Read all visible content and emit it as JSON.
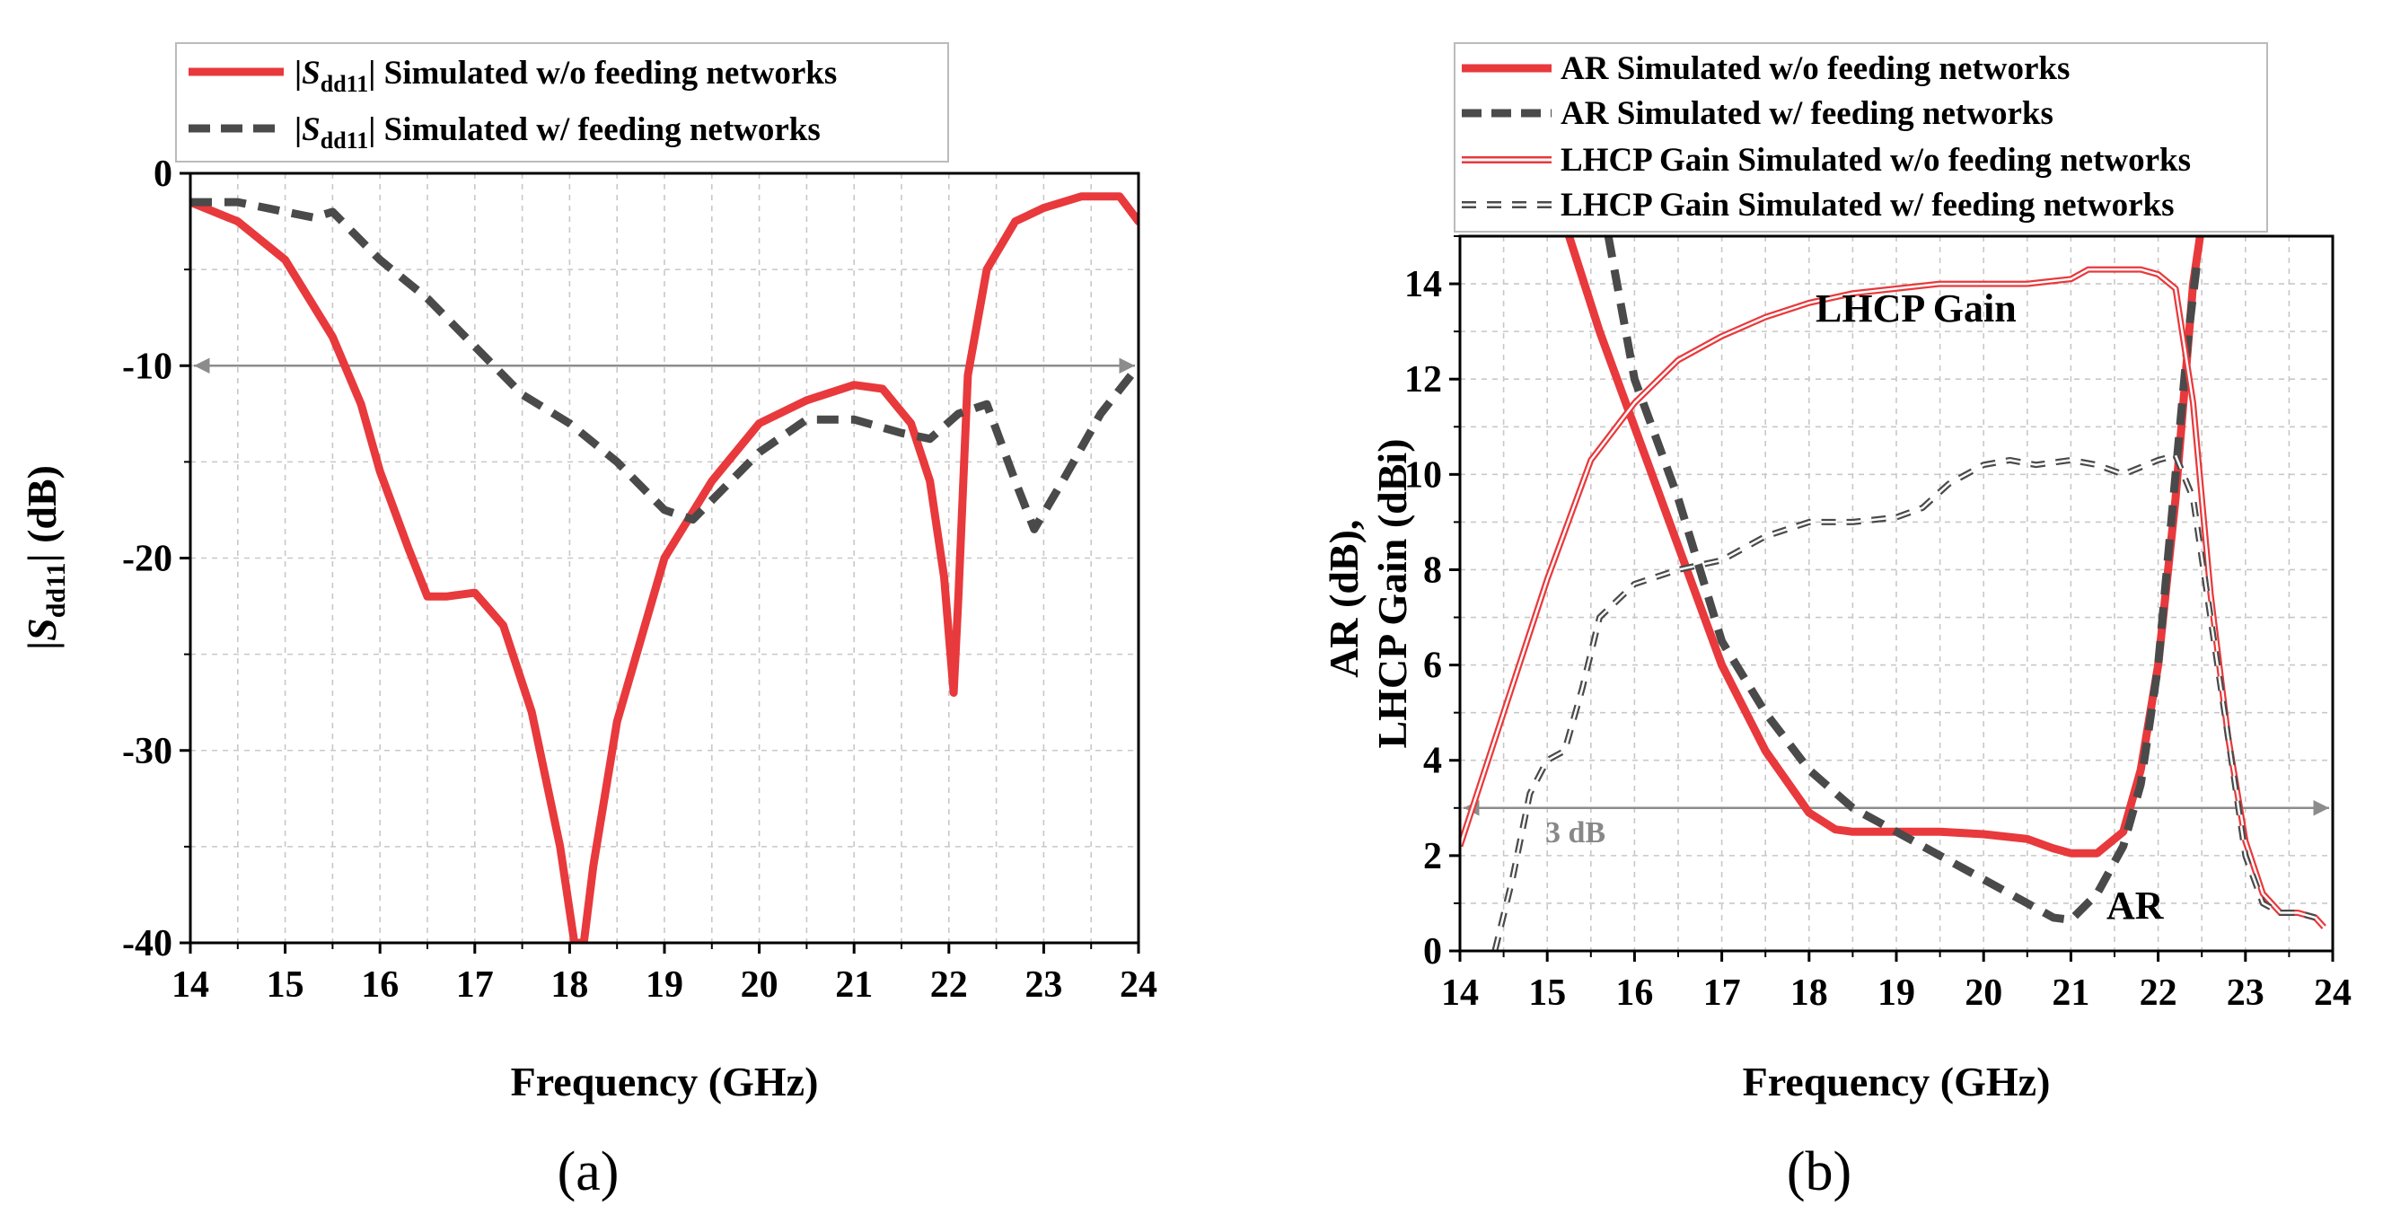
{
  "colors": {
    "red": "#e8393c",
    "dark": "#4a4a4a",
    "grid": "#c8c8c8",
    "reference": "#8c8c8c"
  },
  "chart_data": [
    {
      "id": "a",
      "type": "line",
      "panel_label": "(a)",
      "xlabel": "Frequency (GHz)",
      "ylabel": {
        "pre": "|",
        "sym": "S",
        "sub": "dd11",
        "post": "| (dB)"
      },
      "xlim": [
        14,
        24
      ],
      "ylim": [
        -40,
        0
      ],
      "x_ticks": [
        "14",
        "15",
        "16",
        "17",
        "18",
        "19",
        "20",
        "21",
        "22",
        "23",
        "24"
      ],
      "y_ticks": [
        "0",
        "-10",
        "-20",
        "-30",
        "-40"
      ],
      "grid": true,
      "legend_position": "top-left, above plot",
      "legend": [
        {
          "pre": "|",
          "sym": "S",
          "sub": "dd11",
          "post": "| Simulated w/o feeding networks",
          "style": "solid",
          "color": "#e8393c"
        },
        {
          "pre": "|",
          "sym": "S",
          "sub": "dd11",
          "post": "| Simulated w/ feeding networks",
          "style": "dash",
          "color": "#4a4a4a"
        }
      ],
      "reference_line": {
        "y": -10
      },
      "series": [
        {
          "name": "|Sdd11| Simulated w/o feeding networks",
          "style": "solid",
          "color": "#e8393c",
          "x": [
            14,
            14.5,
            15,
            15.5,
            15.8,
            16,
            16.3,
            16.5,
            16.7,
            17,
            17.3,
            17.6,
            17.9,
            18.05,
            18.15,
            18.25,
            18.5,
            19,
            19.5,
            20,
            20.5,
            21,
            21.3,
            21.6,
            21.8,
            21.95,
            22.05,
            22.1,
            22.2,
            22.4,
            22.7,
            23,
            23.4,
            23.8,
            24
          ],
          "y": [
            -1.5,
            -2.5,
            -4.5,
            -8.5,
            -12,
            -15.5,
            -19.5,
            -22,
            -22,
            -21.8,
            -23.5,
            -28,
            -35,
            -40,
            -40,
            -36,
            -28.5,
            -20,
            -16,
            -13,
            -11.8,
            -11,
            -11.2,
            -13,
            -16,
            -21,
            -27,
            -22,
            -10.5,
            -5,
            -2.5,
            -1.8,
            -1.2,
            -1.2,
            -2.5
          ]
        },
        {
          "name": "|Sdd11| Simulated w/ feeding networks",
          "style": "dash",
          "color": "#4a4a4a",
          "x": [
            14,
            14.5,
            15,
            15.3,
            15.5,
            16,
            16.5,
            17,
            17.5,
            18,
            18.5,
            19,
            19.3,
            19.6,
            20,
            20.5,
            21,
            21.5,
            21.8,
            22.1,
            22.4,
            22.7,
            22.9,
            23.2,
            23.6,
            24
          ],
          "y": [
            -1.5,
            -1.5,
            -2,
            -2.3,
            -2,
            -4.5,
            -6.5,
            -9,
            -11.5,
            -13,
            -15,
            -17.5,
            -18,
            -16.5,
            -14.5,
            -12.8,
            -12.8,
            -13.5,
            -13.8,
            -12.5,
            -12,
            -16,
            -18.5,
            -16,
            -12.5,
            -10
          ]
        }
      ]
    },
    {
      "id": "b",
      "type": "line",
      "panel_label": "(b)",
      "xlabel": "Frequency (GHz)",
      "ylabel": [
        "AR (dB),",
        "LHCP Gain (dBi)"
      ],
      "xlim": [
        14,
        24
      ],
      "ylim": [
        0,
        15
      ],
      "x_ticks": [
        "14",
        "15",
        "16",
        "17",
        "18",
        "19",
        "20",
        "21",
        "22",
        "23",
        "24"
      ],
      "y_ticks": [
        "0",
        "2",
        "4",
        "6",
        "8",
        "10",
        "12",
        "14"
      ],
      "grid": true,
      "legend_position": "top, above plot",
      "legend": [
        {
          "text": "AR Simulated w/o feeding networks",
          "style": "solid",
          "color": "#e8393c"
        },
        {
          "text": "AR Simulated w/ feeding networks",
          "style": "dash",
          "color": "#4a4a4a"
        },
        {
          "text": "LHCP Gain Simulated w/o feeding networks",
          "style": "double",
          "color": "#e8393c"
        },
        {
          "text": "LHCP Gain Simulated w/ feeding networks",
          "style": "double-dash",
          "color": "#4a4a4a"
        }
      ],
      "reference_line": {
        "y": 3,
        "label": "3 dB"
      },
      "annotations": [
        {
          "text": "LHCP Gain",
          "x": 18.1,
          "y": 13.3
        },
        {
          "text": "AR",
          "x": 21.3,
          "y": 0.9
        }
      ],
      "series": [
        {
          "name": "AR Simulated w/o feeding networks",
          "style": "solid",
          "color": "#e8393c",
          "x": [
            15.25,
            15.6,
            16,
            16.5,
            17,
            17.5,
            18,
            18.3,
            18.5,
            19,
            19.5,
            20,
            20.5,
            20.8,
            21,
            21.3,
            21.6,
            21.8,
            22,
            22.2,
            22.4,
            22.48
          ],
          "y": [
            15,
            13,
            11,
            8.5,
            6,
            4.2,
            2.9,
            2.55,
            2.5,
            2.5,
            2.5,
            2.45,
            2.35,
            2.15,
            2.05,
            2.05,
            2.5,
            3.8,
            6,
            9.5,
            14,
            15
          ]
        },
        {
          "name": "AR Simulated w/ feeding networks",
          "style": "dash",
          "color": "#4a4a4a",
          "x": [
            15.7,
            16,
            16.5,
            17,
            17.5,
            18,
            18.5,
            19,
            19.5,
            20,
            20.5,
            20.8,
            21,
            21.3,
            21.6,
            21.8,
            22,
            22.2,
            22.35,
            22.45
          ],
          "y": [
            15,
            12,
            9.5,
            6.5,
            5,
            3.8,
            3,
            2.5,
            2,
            1.5,
            1,
            0.7,
            0.65,
            1.2,
            2.2,
            3.5,
            6,
            10,
            13,
            14.5
          ]
        },
        {
          "name": "LHCP Gain Simulated w/o feeding networks",
          "style": "double",
          "color": "#e8393c",
          "x": [
            14,
            14.5,
            15,
            15.5,
            16,
            16.5,
            17,
            17.5,
            18,
            18.5,
            19,
            19.5,
            20,
            20.5,
            21,
            21.2,
            21.5,
            21.8,
            22,
            22.2,
            22.4,
            22.6,
            22.8,
            23,
            23.2,
            23.4,
            23.6,
            23.8,
            23.9
          ],
          "y": [
            2.2,
            5,
            7.8,
            10.3,
            11.5,
            12.4,
            12.9,
            13.3,
            13.6,
            13.8,
            13.9,
            14,
            14,
            14,
            14.1,
            14.3,
            14.3,
            14.3,
            14.2,
            13.9,
            11.5,
            7.5,
            4.5,
            2.3,
            1.2,
            0.8,
            0.8,
            0.7,
            0.5
          ]
        },
        {
          "name": "LHCP Gain Simulated w/ feeding networks",
          "style": "double-dash",
          "color": "#4a4a4a",
          "x": [
            14.4,
            14.6,
            14.8,
            15,
            15.2,
            15.4,
            15.6,
            16,
            16.5,
            17,
            17.5,
            18,
            18.5,
            19,
            19.3,
            19.6,
            20,
            20.3,
            20.6,
            21,
            21.3,
            21.6,
            22,
            22.2,
            22.4,
            22.6,
            22.8,
            23,
            23.2,
            23.4,
            23.6,
            23.8
          ],
          "y": [
            0,
            1.5,
            3.3,
            4,
            4.2,
            5.5,
            7,
            7.7,
            8,
            8.2,
            8.7,
            9,
            9,
            9.1,
            9.3,
            9.8,
            10.2,
            10.3,
            10.2,
            10.3,
            10.2,
            10,
            10.3,
            10.4,
            9.5,
            7,
            4.5,
            2,
            1,
            0.8,
            0.8,
            0.7
          ]
        }
      ]
    }
  ]
}
